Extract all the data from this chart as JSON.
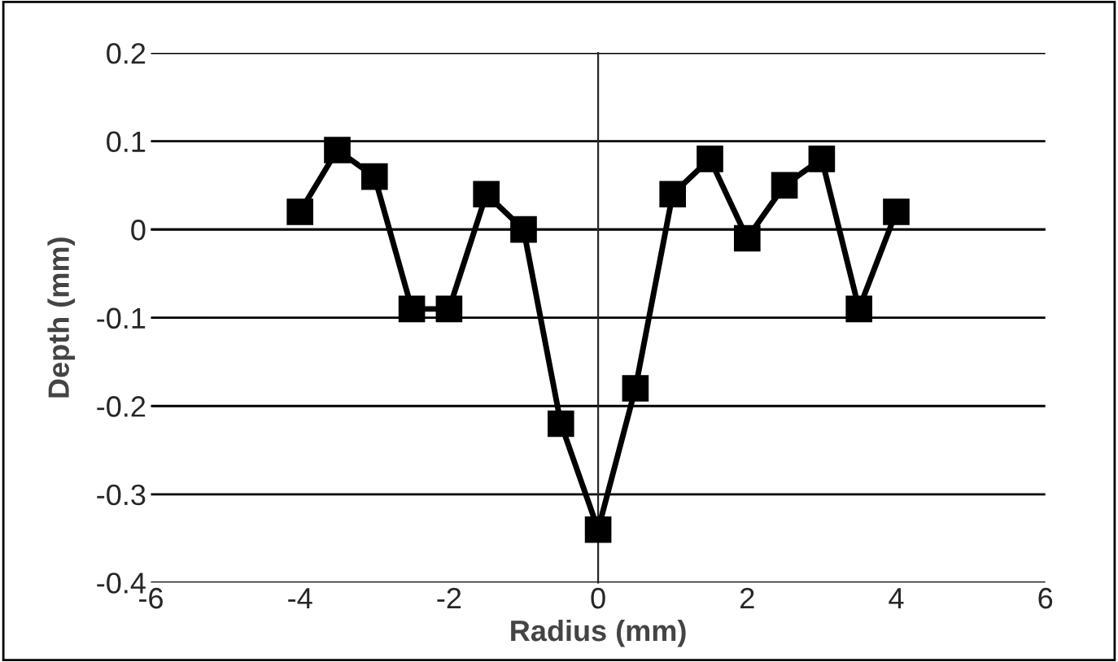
{
  "chart_data": {
    "type": "line",
    "xlabel": "Radius (mm)",
    "ylabel": "Depth (mm)",
    "x": [
      -4,
      -3.5,
      -3,
      -2.5,
      -2,
      -1.5,
      -1,
      -0.5,
      0,
      0.5,
      1,
      1.5,
      2,
      2.5,
      3,
      3.5,
      4
    ],
    "series": [
      {
        "color": "#000000",
        "values": [
          0.02,
          0.09,
          0.06,
          -0.09,
          -0.09,
          0.04,
          0.0,
          -0.22,
          -0.34,
          -0.18,
          0.04,
          0.08,
          -0.01,
          0.05,
          0.08,
          -0.09,
          0.02
        ]
      }
    ],
    "xlim": [
      -6,
      6
    ],
    "xticks": [
      -6,
      -4,
      -2,
      0,
      2,
      4,
      6
    ],
    "ylim": [
      -0.4,
      0.2
    ],
    "yticks": [
      -0.4,
      -0.3,
      -0.2,
      -0.1,
      0,
      0.1,
      0.2
    ],
    "grid": "y",
    "marker": "square",
    "line_style": "solid",
    "legend": false
  }
}
